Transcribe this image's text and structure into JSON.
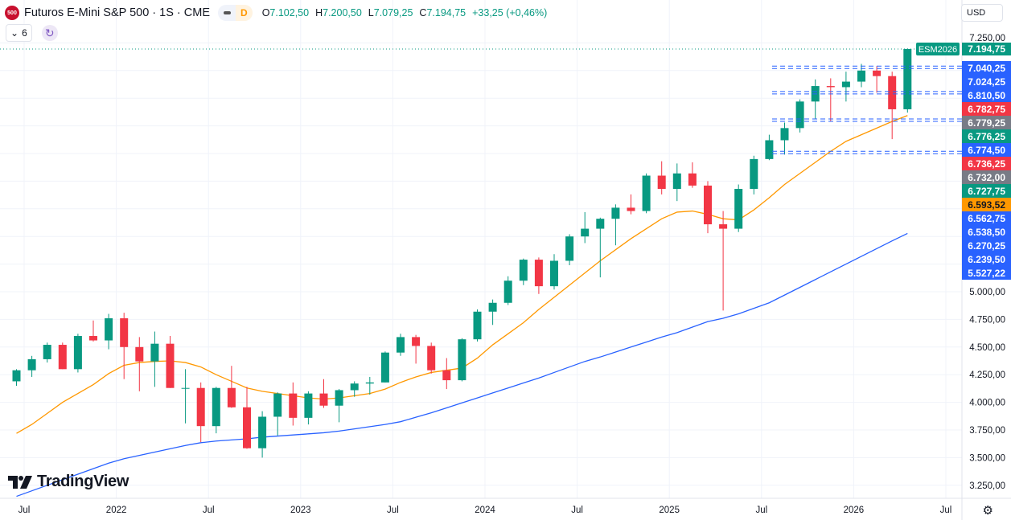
{
  "header": {
    "symbol_logo_text": "500",
    "title": "Futuros E-Mini S&P 500 · 1S · CME",
    "badge_letter": "D",
    "ohlc": {
      "o_label": "O",
      "o": "7.102,50",
      "h_label": "H",
      "h": "7.200,50",
      "l_label": "L",
      "l": "7.079,25",
      "c_label": "C",
      "c": "7.194,75",
      "change": "+33,25 (+0,46%)"
    },
    "indicators_count": "6",
    "currency": "USD"
  },
  "watermark": "TradingView",
  "colors": {
    "up": "#089981",
    "down": "#f23645",
    "ma_fast": "#ff9800",
    "ma_slow": "#2962ff",
    "grid": "#f0f3fa",
    "last_price": "#089981"
  },
  "icons": [
    "chevron-down-icon",
    "sync-icon",
    "settings-gear-icon",
    "tradingview-logo-icon"
  ],
  "chart_data": {
    "type": "candlestick",
    "interval_note": "1S",
    "y_axis": {
      "ticks": [
        7250,
        5000,
        4750,
        4500,
        4250,
        4000,
        3750,
        3500,
        3250
      ],
      "tick_labels": [
        "7.250,00",
        "5.000,00",
        "4.750,00",
        "4.500,00",
        "4.250,00",
        "4.000,00",
        "3.750,00",
        "3.500,00",
        "3.250,00"
      ],
      "range": [
        3120,
        7380
      ],
      "grid": true
    },
    "x_axis": {
      "tick_labels": [
        "Jul",
        "2022",
        "Jul",
        "2023",
        "Jul",
        "2024",
        "Jul",
        "2025",
        "Jul",
        "2026",
        "Jul"
      ],
      "tick_months": [
        "2021-07",
        "2022-01",
        "2022-07",
        "2023-01",
        "2023-07",
        "2024-01",
        "2024-07",
        "2025-01",
        "2025-07",
        "2026-01",
        "2026-07"
      ]
    },
    "months": [
      "2021-06",
      "2021-07",
      "2021-08",
      "2021-09",
      "2021-10",
      "2021-11",
      "2021-12",
      "2022-01",
      "2022-02",
      "2022-03",
      "2022-04",
      "2022-05",
      "2022-06",
      "2022-07",
      "2022-08",
      "2022-09",
      "2022-10",
      "2022-11",
      "2022-12",
      "2023-01",
      "2023-02",
      "2023-03",
      "2023-04",
      "2023-05",
      "2023-06",
      "2023-07",
      "2023-08",
      "2023-09",
      "2023-10",
      "2023-11",
      "2023-12",
      "2024-01",
      "2024-02",
      "2024-03",
      "2024-04",
      "2024-05",
      "2024-06",
      "2024-07",
      "2024-08",
      "2024-09",
      "2024-10",
      "2024-11",
      "2024-12",
      "2025-01",
      "2025-02",
      "2025-03",
      "2025-04",
      "2025-05",
      "2025-06",
      "2025-07",
      "2025-08",
      "2025-09",
      "2025-10",
      "2025-11",
      "2025-12",
      "2026-01",
      "2026-02",
      "2026-03",
      "2026-04"
    ],
    "ohlc": [
      [
        4190,
        4300,
        4150,
        4290
      ],
      [
        4290,
        4420,
        4230,
        4390
      ],
      [
        4390,
        4540,
        4360,
        4520
      ],
      [
        4520,
        4540,
        4300,
        4300
      ],
      [
        4300,
        4620,
        4270,
        4600
      ],
      [
        4600,
        4740,
        4550,
        4560
      ],
      [
        4560,
        4800,
        4480,
        4760
      ],
      [
        4760,
        4810,
        4210,
        4500
      ],
      [
        4500,
        4590,
        4100,
        4370
      ],
      [
        4370,
        4640,
        4140,
        4530
      ],
      [
        4530,
        4600,
        4130,
        4130
      ],
      [
        4130,
        4300,
        3810,
        4130
      ],
      [
        4130,
        4180,
        3640,
        3785
      ],
      [
        3785,
        4140,
        3720,
        4130
      ],
      [
        4130,
        4330,
        3950,
        3955
      ],
      [
        3955,
        4140,
        3580,
        3585
      ],
      [
        3585,
        3920,
        3500,
        3870
      ],
      [
        3870,
        4090,
        3700,
        4080
      ],
      [
        4080,
        4180,
        3790,
        3860
      ],
      [
        3860,
        4100,
        3800,
        4080
      ],
      [
        4080,
        4210,
        3950,
        3970
      ],
      [
        3970,
        4120,
        3820,
        4110
      ],
      [
        4110,
        4190,
        4050,
        4170
      ],
      [
        4170,
        4230,
        4070,
        4180
      ],
      [
        4180,
        4460,
        4180,
        4450
      ],
      [
        4450,
        4620,
        4420,
        4590
      ],
      [
        4590,
        4610,
        4350,
        4510
      ],
      [
        4510,
        4540,
        4260,
        4290
      ],
      [
        4290,
        4400,
        4120,
        4200
      ],
      [
        4200,
        4580,
        4190,
        4570
      ],
      [
        4570,
        4840,
        4550,
        4820
      ],
      [
        4820,
        4930,
        4700,
        4900
      ],
      [
        4900,
        5140,
        4880,
        5100
      ],
      [
        5100,
        5300,
        5060,
        5290
      ],
      [
        5290,
        5310,
        4980,
        5050
      ],
      [
        5050,
        5340,
        5020,
        5280
      ],
      [
        5280,
        5520,
        5240,
        5500
      ],
      [
        5500,
        5720,
        5440,
        5570
      ],
      [
        5570,
        5670,
        5130,
        5660
      ],
      [
        5660,
        5790,
        5420,
        5760
      ],
      [
        5760,
        5880,
        5700,
        5730
      ],
      [
        5730,
        6070,
        5710,
        6050
      ],
      [
        6050,
        6180,
        5880,
        5930
      ],
      [
        5930,
        6160,
        5820,
        6070
      ],
      [
        6070,
        6170,
        5940,
        5960
      ],
      [
        5960,
        6000,
        5530,
        5610
      ],
      [
        5610,
        5730,
        4830,
        5570
      ],
      [
        5570,
        5970,
        5540,
        5930
      ],
      [
        5930,
        6230,
        5880,
        6200
      ],
      [
        6200,
        6420,
        6190,
        6370
      ],
      [
        6370,
        6530,
        6240,
        6480
      ],
      [
        6480,
        6740,
        6440,
        6720
      ],
      [
        6720,
        6920,
        6560,
        6860
      ],
      [
        6860,
        6930,
        6540,
        6850
      ],
      [
        6850,
        6990,
        6720,
        6900
      ],
      [
        6900,
        7060,
        6850,
        7000
      ],
      [
        7000,
        7040,
        6800,
        6950
      ],
      [
        6950,
        6990,
        6380,
        6650
      ],
      [
        6650,
        7200,
        6620,
        7195
      ]
    ],
    "ma_fast": [
      3720,
      3800,
      3900,
      4000,
      4080,
      4160,
      4260,
      4335,
      4360,
      4370,
      4375,
      4360,
      4320,
      4250,
      4190,
      4130,
      4100,
      4080,
      4060,
      4040,
      4030,
      4040,
      4060,
      4080,
      4120,
      4180,
      4230,
      4270,
      4290,
      4310,
      4400,
      4520,
      4620,
      4720,
      4840,
      4950,
      5060,
      5170,
      5280,
      5380,
      5480,
      5570,
      5660,
      5720,
      5730,
      5700,
      5660,
      5650,
      5740,
      5850,
      5970,
      6070,
      6170,
      6270,
      6360,
      6420,
      6480,
      6540,
      6593.52
    ],
    "ma_slow": [
      3150,
      3200,
      3250,
      3300,
      3350,
      3400,
      3450,
      3490,
      3520,
      3550,
      3580,
      3610,
      3635,
      3650,
      3660,
      3670,
      3685,
      3695,
      3705,
      3715,
      3725,
      3740,
      3760,
      3780,
      3800,
      3825,
      3865,
      3905,
      3950,
      3995,
      4040,
      4085,
      4130,
      4175,
      4220,
      4270,
      4320,
      4370,
      4410,
      4455,
      4500,
      4545,
      4590,
      4630,
      4680,
      4730,
      4760,
      4800,
      4850,
      4900,
      4970,
      5040,
      5110,
      5180,
      5250,
      5320,
      5390,
      5460,
      5527.22
    ],
    "last_price": {
      "symbol": "ESM2026",
      "value": 7194.75,
      "label": "7.194,75"
    },
    "price_tags": [
      {
        "label": "7.040,25",
        "value": 7040.25,
        "color": "#2962ff"
      },
      {
        "label": "7.024,25",
        "value": 7024.25,
        "color": "#2962ff"
      },
      {
        "label": "6.810,50",
        "value": 6810.5,
        "color": "#2962ff"
      },
      {
        "label": "6.782,75",
        "value": 6782.75,
        "color": "#f23645"
      },
      {
        "label": "6.779,25",
        "value": 6779.25,
        "color": "#787b86"
      },
      {
        "label": "6.776,25",
        "value": 6776.25,
        "color": "#089981"
      },
      {
        "label": "6.774,50",
        "value": 6774.5,
        "color": "#2962ff"
      },
      {
        "label": "6.736,25",
        "value": 6736.25,
        "color": "#f23645"
      },
      {
        "label": "6.732,00",
        "value": 6732.0,
        "color": "#787b86"
      },
      {
        "label": "6.727,75",
        "value": 6727.75,
        "color": "#089981"
      },
      {
        "label": "6.593,52",
        "value": 6593.52,
        "color": "#ff9800"
      },
      {
        "label": "6.562,75",
        "value": 6562.75,
        "color": "#2962ff"
      },
      {
        "label": "6.538,50",
        "value": 6538.5,
        "color": "#2962ff"
      },
      {
        "label": "6.270,25",
        "value": 6270.25,
        "color": "#2962ff"
      },
      {
        "label": "6.239,50",
        "value": 6239.5,
        "color": "#2962ff"
      },
      {
        "label": "5.527,22",
        "value": 5527.22,
        "color": "#2962ff"
      }
    ],
    "dashed_levels": [
      7040.25,
      6810.5,
      6562.75,
      6270.25
    ]
  }
}
